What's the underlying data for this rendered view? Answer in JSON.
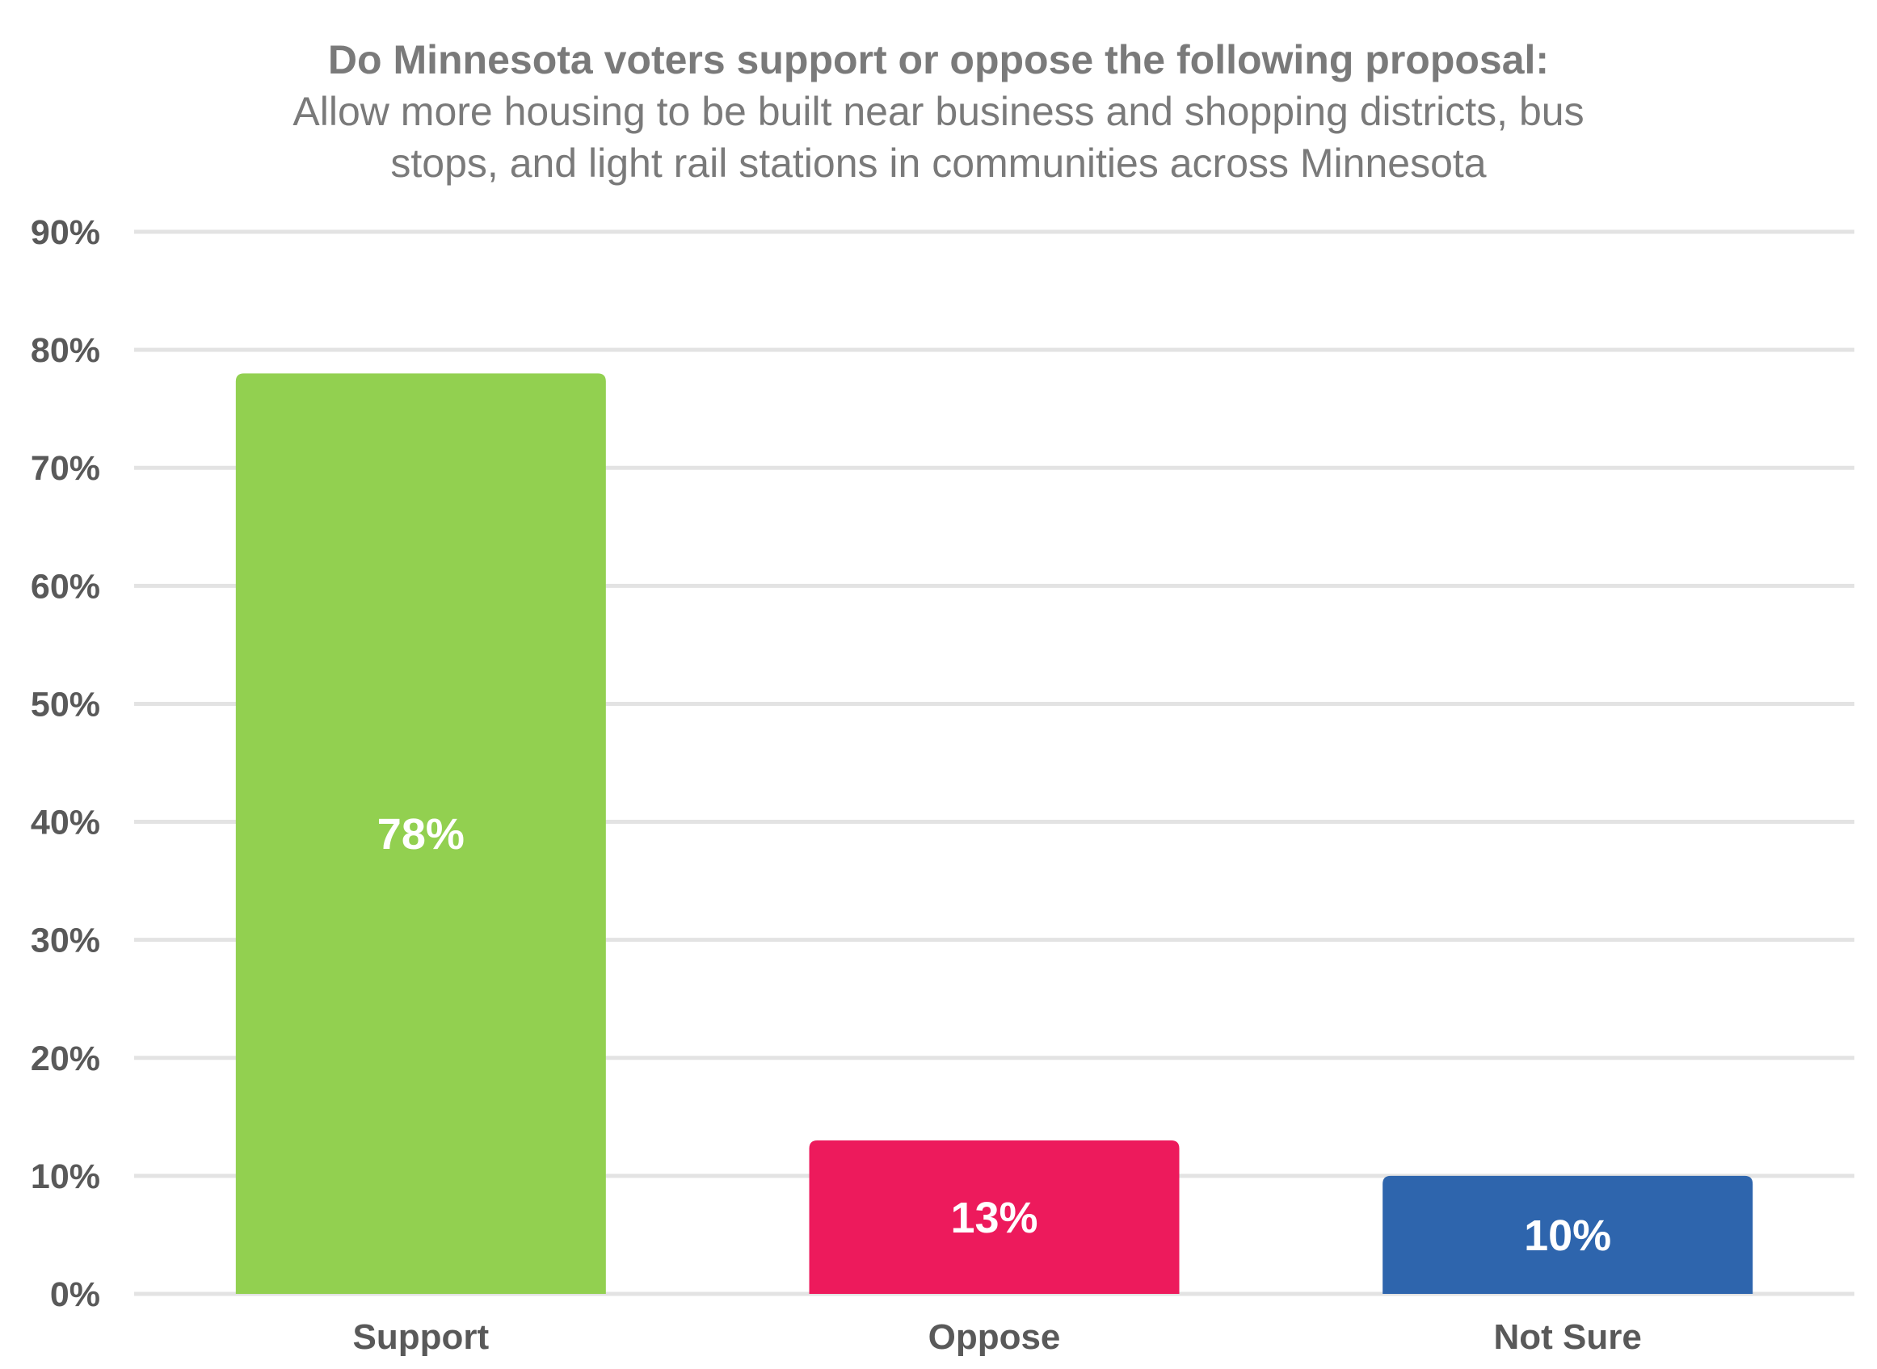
{
  "chart_data": {
    "type": "bar",
    "title": "Do Minnesota voters support or oppose the following proposal:",
    "subtitle_lines": [
      "Allow more housing to be built near business and shopping districts, bus",
      "stops, and light rail stations in communities across Minnesota"
    ],
    "categories": [
      "Support",
      "Oppose",
      "Not Sure"
    ],
    "values": [
      78,
      13,
      10
    ],
    "value_labels": [
      "78%",
      "13%",
      "10%"
    ],
    "bar_colors": [
      "#92d050",
      "#ed1a5c",
      "#2e65ad"
    ],
    "ylim": [
      0,
      90
    ],
    "yticks": [
      0,
      10,
      20,
      30,
      40,
      50,
      60,
      70,
      80,
      90
    ],
    "ytick_labels": [
      "0%",
      "10%",
      "20%",
      "30%",
      "40%",
      "50%",
      "60%",
      "70%",
      "80%",
      "90%"
    ],
    "xlabel": "",
    "ylabel": "",
    "grid": true,
    "legend": "none"
  },
  "colors": {
    "title": "#7a7a7a",
    "axis_text": "#595959",
    "gridline": "#e3e3e3",
    "data_label": "#ffffff"
  }
}
